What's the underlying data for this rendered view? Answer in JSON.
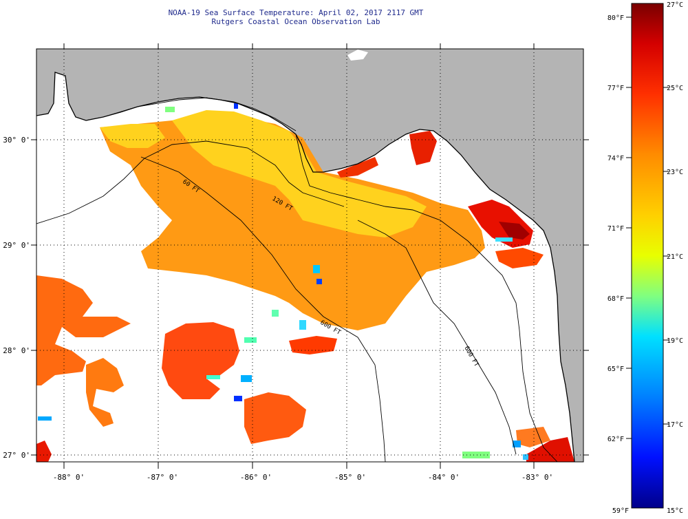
{
  "title": {
    "line1": "NOAA-19 Sea Surface Temperature:  April 02, 2017 2117 GMT",
    "line2": "Rutgers Coastal Ocean Observation Lab"
  },
  "map": {
    "lat_labels": [
      "30° 0'",
      "29° 0'",
      "28° 0'",
      "27° 0'"
    ],
    "lon_labels": [
      "-88° 0'",
      "-87° 0'",
      "-86° 0'",
      "-85° 0'",
      "-84° 0'",
      "-83° 0'"
    ],
    "contour_labels": [
      "60 FT",
      "120 FT",
      "600 FT",
      "600 FT"
    ],
    "land_color": "#b4b4b4",
    "cloud_color": "#ffffff"
  },
  "colorbar": {
    "fahrenheit_labels": [
      "80°F",
      "77°F",
      "74°F",
      "71°F",
      "68°F",
      "65°F",
      "62°F",
      "59°F"
    ],
    "celsius_labels": [
      "27°C",
      "25°C",
      "23°C",
      "21°C",
      "19°C",
      "17°C",
      "15°C"
    ],
    "colors": [
      "#7a0000",
      "#e60000",
      "#ff6a00",
      "#ffc400",
      "#f0ff00",
      "#7fff7f",
      "#00e5ff",
      "#0090ff",
      "#0010ff",
      "#00008a"
    ]
  }
}
